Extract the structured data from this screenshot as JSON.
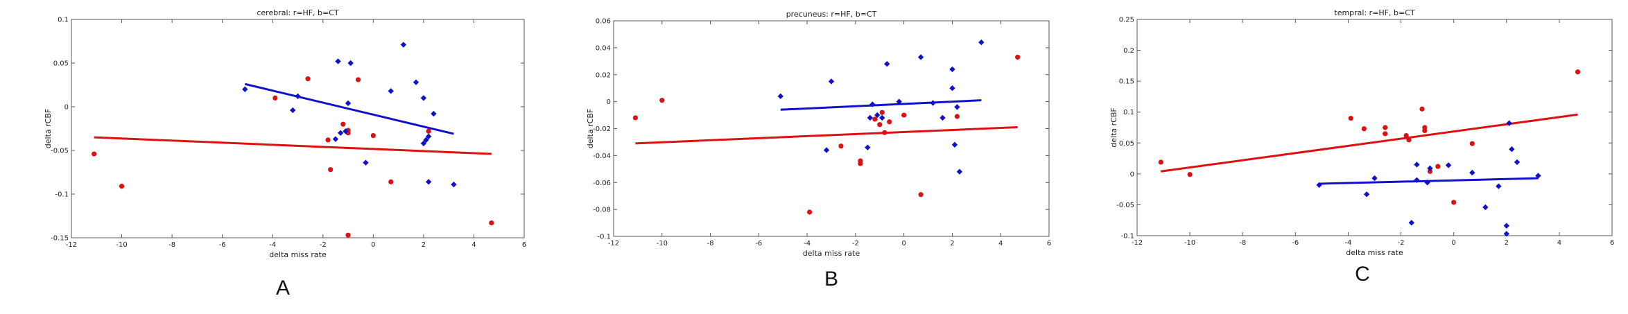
{
  "chart_data": [
    {
      "type": "scatter",
      "panel_label": "A",
      "title": "cerebral: r=HF, b=CT",
      "xlabel": "delta miss rate",
      "ylabel": "delta rCBF",
      "xlim": [
        -12,
        6
      ],
      "ylim": [
        -0.15,
        0.1
      ],
      "xticks": [
        -12,
        -10,
        -8,
        -6,
        -4,
        -2,
        0,
        2,
        4,
        6
      ],
      "yticks": [
        -0.15,
        -0.1,
        -0.05,
        0,
        0.05,
        0.1
      ],
      "xtick_labels": [
        "-12",
        "-10",
        "-8",
        "-6",
        "-4",
        "-2",
        "0",
        "2",
        "4",
        "6"
      ],
      "ytick_labels": [
        "-0.15",
        "-0.1",
        "-0.05",
        "0",
        "0.05",
        "0.1"
      ],
      "grid": false,
      "series": [
        {
          "color": "#dd1111",
          "marker": "circle",
          "points": [
            [
              -11.1,
              -0.054
            ],
            [
              -10,
              -0.091
            ],
            [
              -3.9,
              0.01
            ],
            [
              -2.6,
              0.032
            ],
            [
              -1.8,
              -0.038
            ],
            [
              -1.7,
              -0.072
            ],
            [
              -1.2,
              -0.02
            ],
            [
              -1,
              -0.027
            ],
            [
              -1,
              -0.03
            ],
            [
              -1,
              -0.147
            ],
            [
              -0.6,
              0.031
            ],
            [
              0,
              -0.033
            ],
            [
              0.7,
              -0.086
            ],
            [
              2.2,
              -0.028
            ],
            [
              4.7,
              -0.133
            ]
          ],
          "fit": [
            [
              -11.1,
              -0.035
            ],
            [
              4.7,
              -0.054
            ]
          ]
        },
        {
          "color": "#1111cc",
          "marker": "diamond",
          "points": [
            [
              -5.1,
              0.02
            ],
            [
              -3.2,
              -0.004
            ],
            [
              -3,
              0.012
            ],
            [
              -1.5,
              -0.037
            ],
            [
              -1.4,
              0.052
            ],
            [
              -1.3,
              -0.03
            ],
            [
              -1.1,
              -0.028
            ],
            [
              -1,
              0.004
            ],
            [
              -0.9,
              0.05
            ],
            [
              -0.3,
              -0.064
            ],
            [
              0.7,
              0.018
            ],
            [
              1.2,
              0.071
            ],
            [
              1.7,
              0.028
            ],
            [
              2,
              0.01
            ],
            [
              2,
              -0.042
            ],
            [
              2.1,
              -0.038
            ],
            [
              2.2,
              -0.034
            ],
            [
              2.2,
              -0.086
            ],
            [
              2.4,
              -0.008
            ],
            [
              3.2,
              -0.089
            ]
          ],
          "fit": [
            [
              -5.1,
              0.026
            ],
            [
              3.2,
              -0.031
            ]
          ]
        }
      ]
    },
    {
      "type": "scatter",
      "panel_label": "B",
      "title": "precuneus: r=HF, b=CT",
      "xlabel": "delta miss rate",
      "ylabel": "delta rCBF",
      "xlim": [
        -12,
        6
      ],
      "ylim": [
        -0.1,
        0.06
      ],
      "xticks": [
        -12,
        -10,
        -8,
        -6,
        -4,
        -2,
        0,
        2,
        4,
        6
      ],
      "yticks": [
        -0.1,
        -0.08,
        -0.06,
        -0.04,
        -0.02,
        0,
        0.02,
        0.04,
        0.06
      ],
      "xtick_labels": [
        "-12",
        "-10",
        "-8",
        "-6",
        "-4",
        "-2",
        "0",
        "2",
        "4",
        "6"
      ],
      "ytick_labels": [
        "-0.1",
        "-0.08",
        "-0.06",
        "-0.04",
        "-0.02",
        "0",
        "0.02",
        "0.04",
        "0.06"
      ],
      "grid": false,
      "series": [
        {
          "color": "#dd1111",
          "marker": "circle",
          "points": [
            [
              -11.1,
              -0.012
            ],
            [
              -10,
              0.001
            ],
            [
              -3.9,
              -0.082
            ],
            [
              -2.6,
              -0.033
            ],
            [
              -1.8,
              -0.044
            ],
            [
              -1.8,
              -0.046
            ],
            [
              -1.2,
              -0.013
            ],
            [
              -1,
              -0.017
            ],
            [
              -0.9,
              -0.008
            ],
            [
              -0.8,
              -0.023
            ],
            [
              -0.6,
              -0.015
            ],
            [
              0,
              -0.01
            ],
            [
              0.7,
              -0.069
            ],
            [
              2.2,
              -0.011
            ],
            [
              4.7,
              0.033
            ]
          ],
          "fit": [
            [
              -11.1,
              -0.031
            ],
            [
              4.7,
              -0.019
            ]
          ]
        },
        {
          "color": "#1111cc",
          "marker": "diamond",
          "points": [
            [
              -5.1,
              0.004
            ],
            [
              -3.2,
              -0.036
            ],
            [
              -3,
              0.015
            ],
            [
              -1.5,
              -0.034
            ],
            [
              -1.4,
              -0.012
            ],
            [
              -1.3,
              -0.002
            ],
            [
              -1.1,
              -0.01
            ],
            [
              -0.9,
              -0.012
            ],
            [
              -0.7,
              0.028
            ],
            [
              -0.2,
              0
            ],
            [
              0.7,
              0.033
            ],
            [
              1.2,
              -0.001
            ],
            [
              1.6,
              -0.012
            ],
            [
              2,
              0.024
            ],
            [
              2,
              0.01
            ],
            [
              2.1,
              -0.032
            ],
            [
              2.2,
              -0.004
            ],
            [
              2.3,
              -0.052
            ],
            [
              3.2,
              0.044
            ]
          ],
          "fit": [
            [
              -5.1,
              -0.006
            ],
            [
              3.2,
              0.001
            ]
          ]
        }
      ]
    },
    {
      "type": "scatter",
      "panel_label": "C",
      "title": "tempral: r=HF, b=CT",
      "xlabel": "delta miss rate",
      "ylabel": "delta rCBF",
      "xlim": [
        -12,
        6
      ],
      "ylim": [
        -0.1,
        0.25
      ],
      "xticks": [
        -12,
        -10,
        -8,
        -6,
        -4,
        -2,
        0,
        2,
        4,
        6
      ],
      "yticks": [
        -0.1,
        -0.05,
        0,
        0.05,
        0.1,
        0.15,
        0.2,
        0.25
      ],
      "xtick_labels": [
        "-12",
        "-10",
        "-8",
        "-6",
        "-4",
        "-2",
        "0",
        "2",
        "4",
        "6"
      ],
      "ytick_labels": [
        "-0.1",
        "-0.05",
        "0",
        "0.05",
        "0.1",
        "0.15",
        "0.2",
        "0.25"
      ],
      "grid": false,
      "series": [
        {
          "color": "#dd1111",
          "marker": "circle",
          "points": [
            [
              -11.1,
              0.019
            ],
            [
              -10,
              -0.001
            ],
            [
              -3.9,
              0.09
            ],
            [
              -3.4,
              0.073
            ],
            [
              -2.6,
              0.075
            ],
            [
              -2.6,
              0.065
            ],
            [
              -1.8,
              0.062
            ],
            [
              -1.7,
              0.055
            ],
            [
              -1.2,
              0.105
            ],
            [
              -1.1,
              0.075
            ],
            [
              -1.1,
              0.07
            ],
            [
              -0.9,
              0.004
            ],
            [
              -0.6,
              0.012
            ],
            [
              0.7,
              0.049
            ],
            [
              4.7,
              0.165
            ],
            [
              0,
              -0.046
            ]
          ],
          "fit": [
            [
              -11.1,
              0.004
            ],
            [
              4.7,
              0.096
            ]
          ]
        },
        {
          "color": "#1111cc",
          "marker": "diamond",
          "points": [
            [
              -5.1,
              -0.018
            ],
            [
              -3.3,
              -0.033
            ],
            [
              -3,
              -0.007
            ],
            [
              -1.6,
              -0.079
            ],
            [
              -1.4,
              0.015
            ],
            [
              -1.4,
              -0.01
            ],
            [
              -1,
              -0.014
            ],
            [
              -0.9,
              0.009
            ],
            [
              -0.2,
              0.014
            ],
            [
              0.7,
              0.002
            ],
            [
              1.2,
              -0.054
            ],
            [
              1.7,
              -0.02
            ],
            [
              2,
              -0.084
            ],
            [
              2,
              -0.097
            ],
            [
              2.1,
              0.082
            ],
            [
              2.2,
              0.04
            ],
            [
              2.4,
              0.019
            ],
            [
              3.2,
              -0.003
            ]
          ],
          "fit": [
            [
              -5.1,
              -0.016
            ],
            [
              3.2,
              -0.007
            ]
          ]
        }
      ]
    }
  ]
}
